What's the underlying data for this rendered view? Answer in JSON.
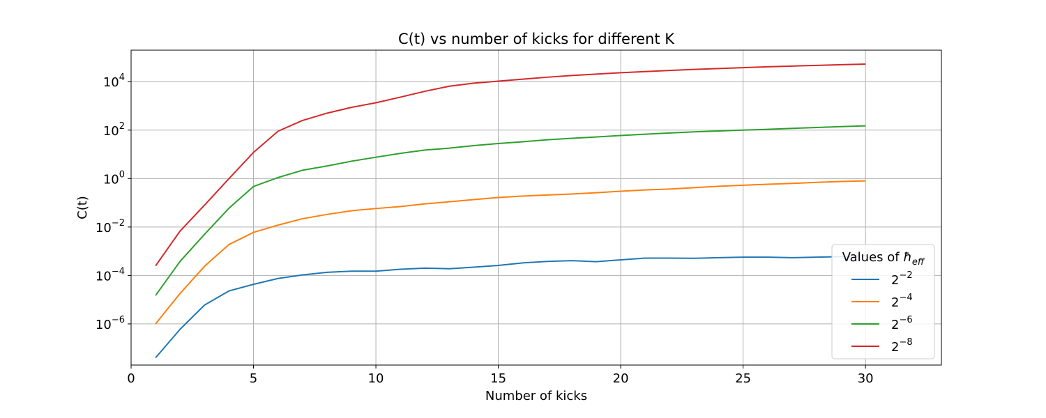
{
  "chart_data": {
    "type": "line",
    "title": "C(t) vs number of kicks for different K",
    "xlabel": "Number of kicks",
    "ylabel": "C(t)",
    "xlim": [
      0,
      33.1
    ],
    "ylim": [
      2e-08,
      200000
    ],
    "yscale": "log",
    "grid": true,
    "x_ticks": [
      0,
      5,
      10,
      15,
      20,
      25,
      30
    ],
    "y_ticks": [
      {
        "value": 1e-06,
        "base": "10",
        "exp": "−6"
      },
      {
        "value": 0.0001,
        "base": "10",
        "exp": "−4"
      },
      {
        "value": 0.01,
        "base": "10",
        "exp": "−2"
      },
      {
        "value": 1,
        "base": "10",
        "exp": "0"
      },
      {
        "value": 100,
        "base": "10",
        "exp": "2"
      },
      {
        "value": 10000,
        "base": "10",
        "exp": "4"
      }
    ],
    "legend": {
      "title_main": "Values of ",
      "title_symbol": "ħ",
      "title_sub": "eff",
      "placement": "lower-right"
    },
    "x": [
      1,
      2,
      3,
      4,
      5,
      6,
      7,
      8,
      9,
      10,
      11,
      12,
      13,
      14,
      15,
      16,
      17,
      18,
      19,
      20,
      21,
      22,
      23,
      24,
      25,
      26,
      27,
      28,
      29,
      30
    ],
    "series": [
      {
        "name_base": "2",
        "name_exp": "−2",
        "color": "#1f77b4",
        "values": [
          4e-08,
          6e-07,
          6e-06,
          2.3e-05,
          4.3e-05,
          7.5e-05,
          0.000105,
          0.000135,
          0.00015,
          0.00015,
          0.00018,
          0.0002,
          0.00019,
          0.00022,
          0.00026,
          0.00033,
          0.00038,
          0.00041,
          0.00037,
          0.00044,
          0.00052,
          0.00052,
          0.00051,
          0.00054,
          0.00057,
          0.00057,
          0.00054,
          0.00057,
          0.0006,
          0.00065
        ]
      },
      {
        "name_base": "2",
        "name_exp": "−4",
        "color": "#ff7f0e",
        "values": [
          1e-06,
          1.8e-05,
          0.00024,
          0.0019,
          0.006,
          0.012,
          0.022,
          0.033,
          0.047,
          0.058,
          0.07,
          0.09,
          0.11,
          0.135,
          0.165,
          0.19,
          0.21,
          0.23,
          0.26,
          0.3,
          0.34,
          0.37,
          0.42,
          0.48,
          0.53,
          0.58,
          0.63,
          0.7,
          0.76,
          0.8
        ]
      },
      {
        "name_base": "2",
        "name_exp": "−6",
        "color": "#2ca02c",
        "values": [
          1.5e-05,
          0.00038,
          0.005,
          0.06,
          0.47,
          1.1,
          2.2,
          3.3,
          5.2,
          7.6,
          11,
          15,
          18,
          23,
          28,
          33,
          40,
          46,
          52,
          60,
          68,
          76,
          85,
          92,
          100,
          108,
          118,
          128,
          140,
          150
        ]
      },
      {
        "name_base": "2",
        "name_exp": "−8",
        "color": "#d62728",
        "values": [
          0.00025,
          0.0068,
          0.08,
          1,
          12,
          90,
          250,
          500,
          870,
          1350,
          2300,
          4000,
          6500,
          8700,
          10500,
          12700,
          15300,
          18000,
          20500,
          23500,
          26000,
          29000,
          32000,
          35000,
          38000,
          41000,
          44000,
          47000,
          50000,
          53000
        ]
      }
    ]
  }
}
